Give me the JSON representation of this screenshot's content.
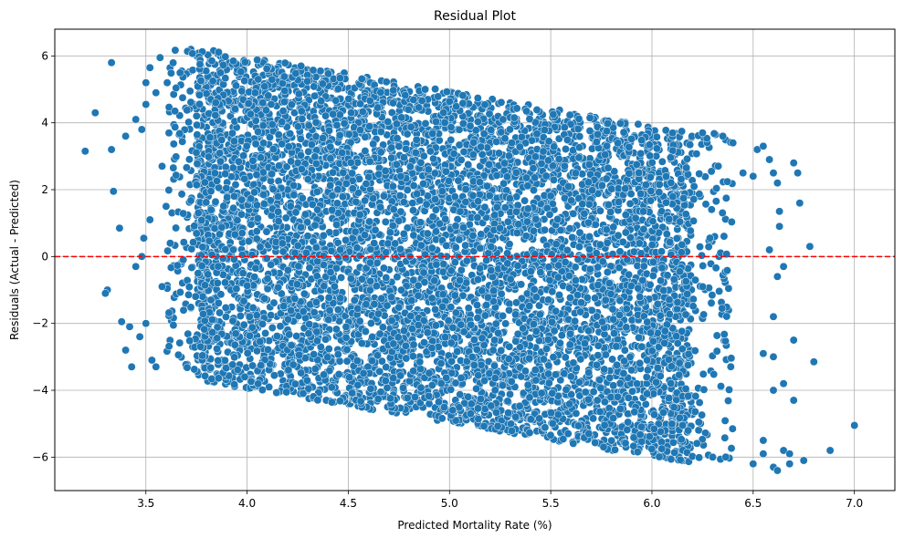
{
  "chart_data": {
    "type": "scatter",
    "title": "Residual Plot",
    "xlabel": "Predicted Mortality Rate (%)",
    "ylabel": "Residuals (Actual - Predicted)",
    "xlim": [
      3.05,
      7.2
    ],
    "ylim": [
      -7.0,
      6.8
    ],
    "xticks": [
      3.5,
      4.0,
      4.5,
      5.0,
      5.5,
      6.0,
      6.5,
      7.0
    ],
    "xtick_labels": [
      "3.5",
      "4.0",
      "4.5",
      "5.0",
      "5.5",
      "6.0",
      "6.5",
      "7.0"
    ],
    "yticks": [
      -6,
      -4,
      -2,
      0,
      2,
      4,
      6
    ],
    "ytick_labels": [
      "−6",
      "−4",
      "−2",
      "0",
      "2",
      "4",
      "6"
    ],
    "grid": true,
    "reference_line": {
      "y": 0,
      "style": "dashed",
      "color": "#ff0000"
    },
    "colors": {
      "points": "#1f77b4",
      "point_edge": "#ffffff",
      "reference": "#ff0000",
      "grid": "#b0b0b0"
    },
    "band": {
      "x_range": [
        3.75,
        6.2
      ],
      "upper": [
        [
          3.75,
          6.25
        ],
        [
          6.2,
          3.7
        ]
      ],
      "lower": [
        [
          3.75,
          -3.7
        ],
        [
          6.2,
          -6.2
        ]
      ]
    },
    "outlier_points": [
      [
        3.2,
        3.15
      ],
      [
        3.25,
        4.3
      ],
      [
        3.33,
        5.8
      ],
      [
        3.34,
        1.95
      ],
      [
        3.33,
        3.2
      ],
      [
        3.31,
        -1.0
      ],
      [
        3.3,
        -1.1
      ],
      [
        3.37,
        0.85
      ],
      [
        3.38,
        -1.95
      ],
      [
        3.4,
        -2.8
      ],
      [
        3.42,
        -2.1
      ],
      [
        3.43,
        -3.3
      ],
      [
        3.4,
        3.6
      ],
      [
        3.45,
        4.1
      ],
      [
        3.45,
        -0.3
      ],
      [
        3.48,
        0.0
      ],
      [
        3.49,
        0.55
      ],
      [
        3.47,
        -2.4
      ],
      [
        3.5,
        -2.0
      ],
      [
        3.52,
        1.1
      ],
      [
        3.53,
        -3.1
      ],
      [
        3.5,
        5.2
      ],
      [
        3.52,
        5.65
      ],
      [
        3.55,
        4.9
      ],
      [
        3.57,
        5.95
      ],
      [
        3.55,
        -3.3
      ],
      [
        3.58,
        -0.9
      ],
      [
        3.6,
        1.5
      ],
      [
        3.48,
        3.8
      ],
      [
        3.5,
        4.55
      ],
      [
        3.58,
        2.7
      ],
      [
        3.62,
        0.4
      ],
      [
        6.25,
        3.7
      ],
      [
        6.3,
        -6.0
      ],
      [
        6.35,
        3.6
      ],
      [
        6.4,
        3.4
      ],
      [
        6.45,
        2.5
      ],
      [
        6.5,
        2.4
      ],
      [
        6.52,
        3.2
      ],
      [
        6.55,
        3.3
      ],
      [
        6.5,
        -6.2
      ],
      [
        6.55,
        -5.9
      ],
      [
        6.58,
        2.9
      ],
      [
        6.6,
        2.5
      ],
      [
        6.6,
        -6.3
      ],
      [
        6.62,
        -6.4
      ],
      [
        6.63,
        1.35
      ],
      [
        6.62,
        -0.6
      ],
      [
        6.6,
        -1.8
      ],
      [
        6.65,
        -3.8
      ],
      [
        6.65,
        -5.8
      ],
      [
        6.68,
        -5.9
      ],
      [
        6.7,
        2.8
      ],
      [
        6.72,
        2.5
      ],
      [
        6.73,
        1.6
      ],
      [
        6.7,
        -2.5
      ],
      [
        6.7,
        -4.3
      ],
      [
        6.68,
        -6.2
      ],
      [
        6.75,
        -6.1
      ],
      [
        6.78,
        0.3
      ],
      [
        6.8,
        -3.15
      ],
      [
        6.88,
        -5.8
      ],
      [
        7.0,
        -5.05
      ],
      [
        6.55,
        -2.9
      ],
      [
        6.6,
        -3.0
      ],
      [
        6.65,
        -0.3
      ],
      [
        6.62,
        2.2
      ],
      [
        6.58,
        0.2
      ],
      [
        6.55,
        -5.5
      ],
      [
        6.6,
        -4.0
      ],
      [
        6.63,
        0.9
      ]
    ]
  }
}
